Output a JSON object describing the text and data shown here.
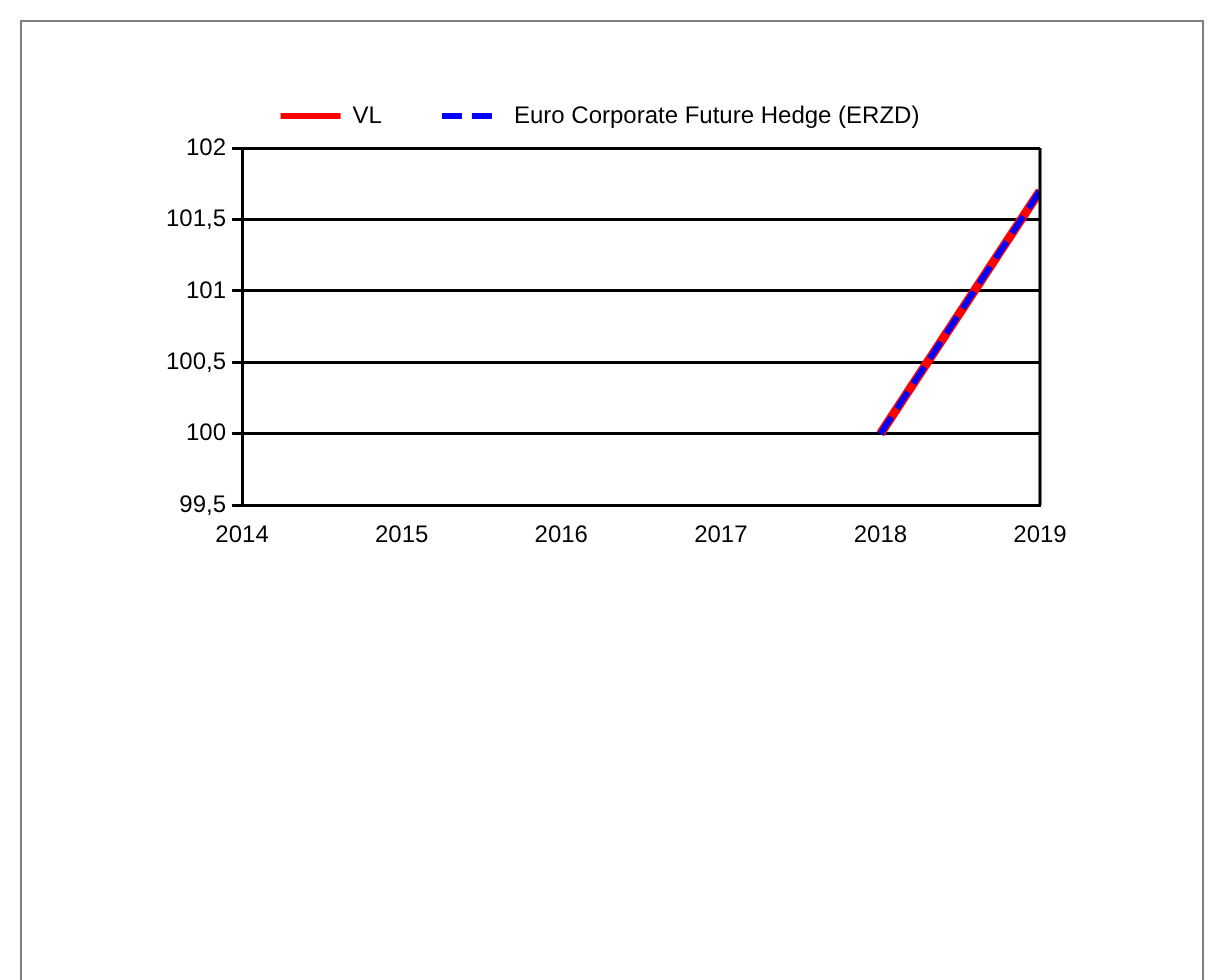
{
  "chart_data": {
    "type": "line",
    "x": [
      2018,
      2019
    ],
    "series": [
      {
        "name": "VL",
        "color": "#ff0000",
        "values": [
          100,
          101.7
        ],
        "line_style": "solid"
      },
      {
        "name": "Euro Corporate Future Hedge (ERZD)",
        "color": "#0000ff",
        "values": [
          100,
          101.7
        ],
        "line_style": "dashed"
      }
    ],
    "xlim": [
      2014,
      2019
    ],
    "xticks": [
      2014,
      2015,
      2016,
      2017,
      2018,
      2019
    ],
    "ylim": [
      99.5,
      102
    ],
    "yticks": [
      {
        "value": 99.5,
        "label": "99,5"
      },
      100,
      {
        "value": 100.5,
        "label": "100,5"
      },
      101,
      {
        "value": 101.5,
        "label": "101,5"
      },
      102
    ],
    "grid": "y",
    "legend": "top",
    "marker": "none"
  }
}
